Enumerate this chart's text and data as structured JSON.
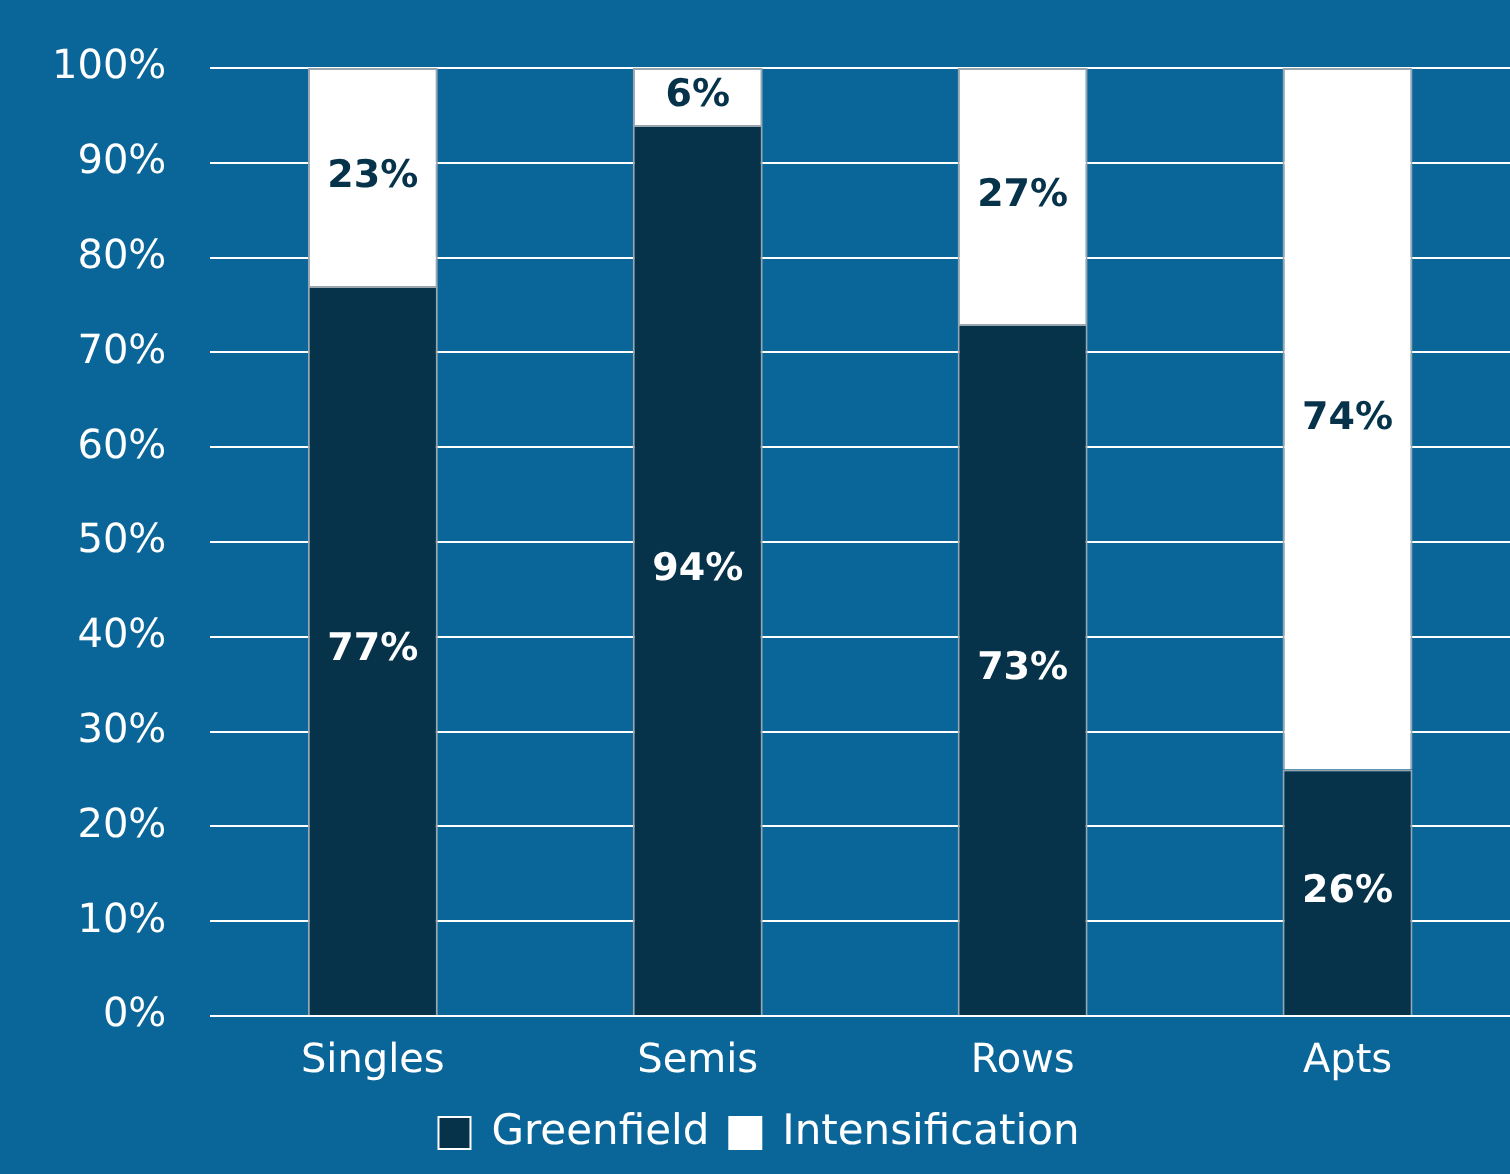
{
  "chart_data": {
    "type": "bar",
    "stacked": true,
    "categories": [
      "Singles",
      "Semis",
      "Rows",
      "Apts"
    ],
    "series": [
      {
        "name": "Greenfield",
        "color": "#06324a",
        "values": [
          77,
          94,
          73,
          26
        ]
      },
      {
        "name": "Intensification",
        "color": "#ffffff",
        "values": [
          23,
          6,
          27,
          74
        ]
      }
    ],
    "ylim": [
      0,
      100
    ],
    "yticks": [
      {
        "value": 0,
        "label": "0%"
      },
      {
        "value": 10,
        "label": "10%"
      },
      {
        "value": 20,
        "label": "20%"
      },
      {
        "value": 30,
        "label": "30%"
      },
      {
        "value": 40,
        "label": "40%"
      },
      {
        "value": 50,
        "label": "50%"
      },
      {
        "value": 60,
        "label": "60%"
      },
      {
        "value": 70,
        "label": "70%"
      },
      {
        "value": 80,
        "label": "80%"
      },
      {
        "value": 90,
        "label": "90%"
      },
      {
        "value": 100,
        "label": "100%"
      }
    ],
    "value_labels": [
      [
        "77%",
        "94%",
        "73%",
        "26%"
      ],
      [
        "23%",
        "6%",
        "27%",
        "74%"
      ]
    ],
    "grid": "y",
    "legend": "bottom"
  }
}
